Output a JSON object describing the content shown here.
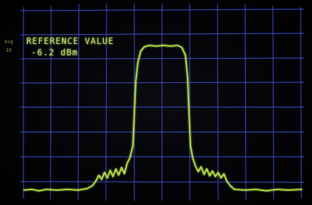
{
  "screen": {
    "mode_label": "Avg",
    "mode_count": "16",
    "reference_label": "REFERENCE VALUE",
    "reference_value": "-6.2 dBm"
  }
}
